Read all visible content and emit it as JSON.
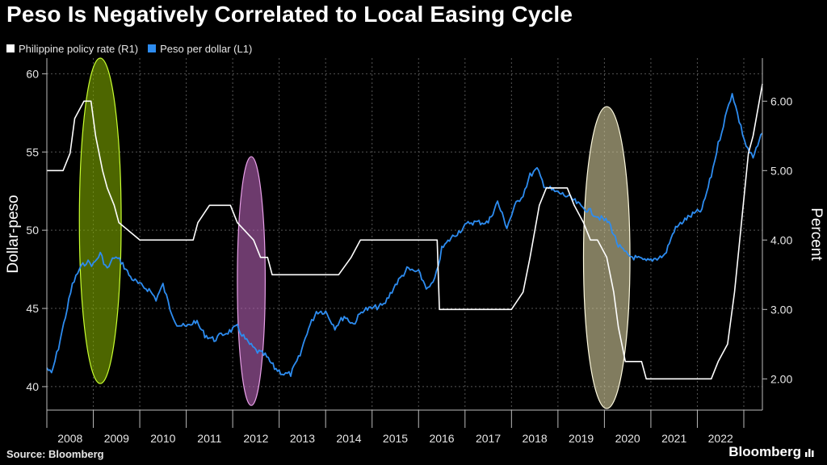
{
  "title": "Peso Is Negatively Correlated to Local Easing Cycle",
  "source": "Source: Bloomberg",
  "brand": "Bloomberg",
  "colors": {
    "background": "#000000",
    "policy_rate": "#ffffff",
    "peso": "#2d8cf0",
    "peso_highlight": "#8ec6ff",
    "gridline": "#555555",
    "ellipse_green_fill": "#7da500",
    "ellipse_green_stroke": "#c8ff30",
    "ellipse_pink_fill": "#b060b0",
    "ellipse_pink_stroke": "#e8a0e8",
    "ellipse_tan_fill": "#d0c89a",
    "ellipse_tan_stroke": "#fffbe0"
  },
  "chart_data": {
    "type": "line",
    "title": "Peso Is Negatively Correlated to Local Easing Cycle",
    "ylabel_left": "Dollar-peso",
    "ylabel_right": "Percent",
    "x_ticks": [
      "2008",
      "2009",
      "2010",
      "2011",
      "2012",
      "2013",
      "2014",
      "2015",
      "2016",
      "2017",
      "2018",
      "2019",
      "2020",
      "2021",
      "2022"
    ],
    "xlim": [
      2008.0,
      2023.4
    ],
    "ylim_left": [
      38.5,
      61
    ],
    "ylim_right": [
      1.55,
      6.62
    ],
    "y_ticks_left": [
      "40",
      "45",
      "50",
      "55",
      "60"
    ],
    "y_ticks_right": [
      "2.00",
      "3.00",
      "4.00",
      "5.00",
      "6.00"
    ],
    "grid": true,
    "legend_position": "top-left",
    "series": [
      {
        "name": "Philippine policy rate (R1)",
        "axis": "right",
        "x": [
          2008.0,
          2008.35,
          2008.5,
          2008.6,
          2008.8,
          2008.95,
          2009.05,
          2009.2,
          2009.3,
          2009.45,
          2009.55,
          2010.0,
          2010.5,
          2011.15,
          2011.25,
          2011.5,
          2011.7,
          2011.95,
          2012.1,
          2012.45,
          2012.6,
          2012.75,
          2012.85,
          2013.0,
          2014.0,
          2014.28,
          2014.55,
          2014.75,
          2015.0,
          2016.0,
          2016.4,
          2016.45,
          2017.0,
          2018.0,
          2018.25,
          2018.4,
          2018.6,
          2018.75,
          2018.95,
          2019.2,
          2019.35,
          2019.55,
          2019.7,
          2019.85,
          2020.05,
          2020.2,
          2020.3,
          2020.45,
          2020.8,
          2020.9,
          2021.0,
          2022.0,
          2022.3,
          2022.45,
          2022.65,
          2022.8,
          2022.95,
          2023.1,
          2023.2,
          2023.4
        ],
        "values": [
          5.0,
          5.0,
          5.25,
          5.75,
          6.0,
          6.0,
          5.5,
          5.0,
          4.75,
          4.5,
          4.25,
          4.0,
          4.0,
          4.0,
          4.25,
          4.5,
          4.5,
          4.5,
          4.25,
          4.0,
          3.75,
          3.75,
          3.5,
          3.5,
          3.5,
          3.5,
          3.75,
          4.0,
          4.0,
          4.0,
          4.0,
          3.0,
          3.0,
          3.0,
          3.25,
          3.75,
          4.5,
          4.75,
          4.75,
          4.75,
          4.5,
          4.25,
          4.0,
          4.0,
          3.75,
          3.25,
          2.75,
          2.25,
          2.25,
          2.0,
          2.0,
          2.0,
          2.0,
          2.25,
          2.5,
          3.25,
          4.25,
          5.25,
          5.5,
          6.25
        ]
      },
      {
        "name": "Peso per dollar (L1)",
        "axis": "left",
        "x": [
          2008.0,
          2008.1,
          2008.25,
          2008.4,
          2008.55,
          2008.7,
          2008.85,
          2009.0,
          2009.15,
          2009.3,
          2009.45,
          2009.6,
          2009.8,
          2010.0,
          2010.2,
          2010.35,
          2010.5,
          2010.65,
          2010.8,
          2011.0,
          2011.2,
          2011.4,
          2011.6,
          2011.75,
          2011.9,
          2012.1,
          2012.3,
          2012.5,
          2012.7,
          2012.9,
          2013.1,
          2013.25,
          2013.45,
          2013.6,
          2013.8,
          2014.0,
          2014.2,
          2014.4,
          2014.6,
          2014.8,
          2015.0,
          2015.25,
          2015.5,
          2015.75,
          2016.0,
          2016.2,
          2016.35,
          2016.5,
          2016.7,
          2016.9,
          2017.1,
          2017.3,
          2017.5,
          2017.7,
          2017.9,
          2018.1,
          2018.25,
          2018.4,
          2018.55,
          2018.7,
          2018.9,
          2019.1,
          2019.3,
          2019.5,
          2019.7,
          2019.9,
          2020.1,
          2020.3,
          2020.5,
          2020.7,
          2020.9,
          2021.1,
          2021.3,
          2021.5,
          2021.7,
          2021.9,
          2022.1,
          2022.3,
          2022.45,
          2022.6,
          2022.75,
          2022.9,
          2023.05,
          2023.2,
          2023.4
        ],
        "values": [
          41.2,
          40.8,
          42.5,
          44.5,
          46.5,
          47.5,
          48.0,
          47.8,
          48.5,
          47.5,
          48.3,
          48.0,
          47.0,
          46.5,
          46.2,
          45.6,
          46.5,
          45.0,
          44.0,
          43.8,
          44.2,
          43.3,
          43.0,
          43.3,
          43.5,
          43.8,
          42.9,
          42.3,
          42.0,
          41.2,
          40.8,
          40.8,
          42.0,
          43.5,
          44.8,
          44.8,
          43.8,
          44.5,
          44.0,
          44.9,
          45.0,
          45.2,
          46.5,
          47.5,
          47.3,
          46.2,
          46.8,
          48.8,
          49.5,
          50.0,
          50.5,
          50.5,
          50.5,
          51.8,
          50.2,
          51.7,
          52.3,
          53.5,
          53.9,
          52.9,
          52.5,
          52.3,
          52.0,
          51.5,
          51.2,
          50.8,
          50.5,
          49.0,
          48.4,
          48.2,
          48.0,
          48.2,
          48.4,
          50.0,
          50.6,
          51.0,
          51.3,
          53.5,
          55.5,
          57.2,
          58.8,
          57.0,
          55.4,
          54.6,
          56.2
        ]
      }
    ],
    "highlights": [
      {
        "x_center": 2009.15,
        "x_halfwidth": 0.45,
        "y_top": 61.0,
        "y_bottom": 40.2,
        "color": "green"
      },
      {
        "x_center": 2012.4,
        "x_halfwidth": 0.3,
        "y_top": 54.7,
        "y_bottom": 38.8,
        "color": "pink"
      },
      {
        "x_center": 2020.05,
        "x_halfwidth": 0.5,
        "y_top": 57.9,
        "y_bottom": 38.6,
        "color": "tan"
      }
    ]
  }
}
